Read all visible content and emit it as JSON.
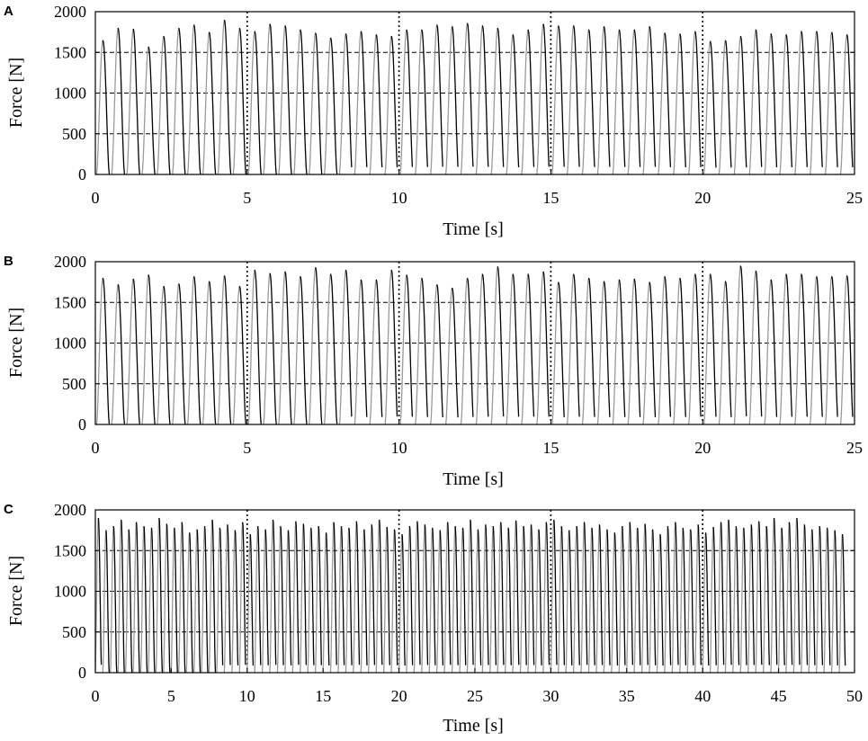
{
  "figure": {
    "panels": [
      "A",
      "B",
      "C"
    ]
  },
  "chart_data": [
    {
      "type": "line",
      "panel_label": "A",
      "title": "",
      "xlabel": "Time [s]",
      "ylabel": "Force [N]",
      "xlim": [
        0,
        25
      ],
      "ylim": [
        0,
        2000
      ],
      "x_ticks": [
        0,
        5,
        10,
        15,
        20,
        25
      ],
      "y_ticks": [
        0,
        500,
        1000,
        1500,
        2000
      ],
      "vertical_dotted_lines_at": [
        5,
        10,
        15,
        20
      ],
      "horizontal_dashed_gridlines_at": [
        500,
        1000,
        1500
      ],
      "line_color_rise": "#9a9a9a",
      "line_color_fall": "#000000",
      "series": [
        {
          "description": "periodic force peaks, approx. 2 per second",
          "start": 0.25,
          "period": 0.5,
          "peak_values": [
            1650,
            1800,
            1790,
            1570,
            1700,
            1800,
            1840,
            1750,
            1900,
            1800,
            1760,
            1850,
            1830,
            1780,
            1740,
            1680,
            1730,
            1760,
            1720,
            1700,
            1780,
            1780,
            1840,
            1820,
            1860,
            1830,
            1800,
            1720,
            1780,
            1850,
            1830,
            1830,
            1780,
            1820,
            1780,
            1780,
            1820,
            1740,
            1730,
            1760,
            1640,
            1650,
            1700,
            1780,
            1730,
            1720,
            1760,
            1760,
            1750,
            1720
          ]
        }
      ]
    },
    {
      "type": "line",
      "panel_label": "B",
      "title": "",
      "xlabel": "Time [s]",
      "ylabel": "Force [N]",
      "xlim": [
        0,
        25
      ],
      "ylim": [
        0,
        2000
      ],
      "x_ticks": [
        0,
        5,
        10,
        15,
        20,
        25
      ],
      "y_ticks": [
        0,
        500,
        1000,
        1500,
        2000
      ],
      "vertical_dotted_lines_at": [
        5,
        10,
        15,
        20
      ],
      "horizontal_dashed_gridlines_at": [
        500,
        1000,
        1500
      ],
      "line_color_rise": "#9a9a9a",
      "line_color_fall": "#000000",
      "series": [
        {
          "description": "periodic force peaks, approx. 2 per second",
          "start": 0.25,
          "period": 0.5,
          "peak_values": [
            1800,
            1720,
            1790,
            1840,
            1700,
            1730,
            1820,
            1760,
            1830,
            1700,
            1900,
            1860,
            1880,
            1820,
            1930,
            1850,
            1900,
            1780,
            1780,
            1900,
            1840,
            1800,
            1720,
            1680,
            1800,
            1850,
            1940,
            1850,
            1850,
            1880,
            1750,
            1850,
            1800,
            1760,
            1780,
            1790,
            1750,
            1820,
            1800,
            1850,
            1850,
            1760,
            1950,
            1890,
            1780,
            1850,
            1850,
            1820,
            1820,
            1830
          ]
        }
      ]
    },
    {
      "type": "line",
      "panel_label": "C",
      "title": "",
      "xlabel": "Time [s]",
      "ylabel": "Force [N]",
      "xlim": [
        0,
        50
      ],
      "ylim": [
        0,
        2000
      ],
      "x_ticks": [
        0,
        5,
        10,
        15,
        20,
        25,
        30,
        35,
        40,
        45,
        50
      ],
      "y_ticks": [
        0,
        500,
        1000,
        1500,
        2000
      ],
      "vertical_dotted_lines_at": [
        10,
        20,
        30,
        40
      ],
      "horizontal_dashed_gridlines_at": [
        500,
        1000,
        1500
      ],
      "line_color_rise": "#9a9a9a",
      "line_color_fall": "#000000",
      "series": [
        {
          "description": "periodic force peaks, approx. 2 per second",
          "start": 0.2,
          "period": 0.5,
          "peak_values": [
            1900,
            1750,
            1800,
            1880,
            1760,
            1850,
            1800,
            1780,
            1900,
            1830,
            1780,
            1850,
            1720,
            1760,
            1800,
            1880,
            1780,
            1820,
            1750,
            1850,
            1700,
            1800,
            1760,
            1880,
            1800,
            1750,
            1860,
            1830,
            1780,
            1800,
            1720,
            1850,
            1800,
            1780,
            1860,
            1760,
            1820,
            1880,
            1790,
            1760,
            1700,
            1800,
            1860,
            1820,
            1780,
            1750,
            1850,
            1800,
            1780,
            1880,
            1760,
            1820,
            1800,
            1850,
            1780,
            1870,
            1800,
            1820,
            1760,
            1850,
            1880,
            1800,
            1750,
            1800,
            1850,
            1780,
            1820,
            1760,
            1720,
            1800,
            1850,
            1780,
            1830,
            1760,
            1700,
            1800,
            1850,
            1780,
            1760,
            1820,
            1720,
            1790,
            1850,
            1880,
            1800,
            1780,
            1820,
            1860,
            1800,
            1900,
            1780,
            1850,
            1900,
            1820,
            1760,
            1800,
            1780,
            1750,
            1700
          ]
        }
      ]
    }
  ]
}
